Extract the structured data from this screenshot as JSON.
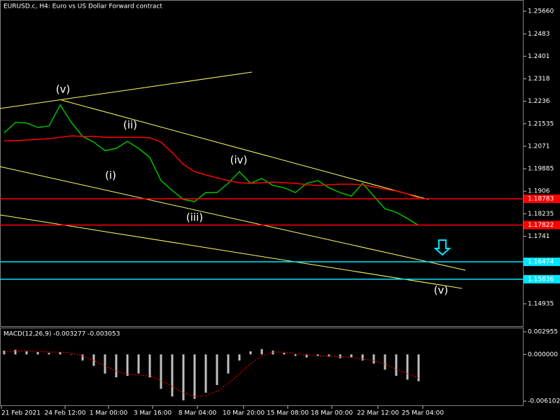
{
  "chart_data": [
    {
      "type": "line",
      "title": "EURUSD.c, H4:  Euro vs US Dollar Forward contract",
      "series": [
        {
          "color": "#00c000",
          "values": [
            1.212,
            1.2158,
            1.2156,
            1.214,
            1.2145,
            1.2222,
            1.2158,
            1.2107,
            1.2086,
            1.2055,
            1.2063,
            1.2089,
            1.2063,
            1.203,
            1.1945,
            1.1909,
            1.1876,
            1.1868,
            1.1901,
            1.1901,
            1.1935,
            1.1978,
            1.1935,
            1.1953,
            1.1927,
            1.1919,
            1.1901,
            1.1935,
            1.1945,
            1.1919,
            1.1901,
            1.1888,
            1.1935,
            1.1888,
            1.1842,
            1.1829,
            1.1806,
            1.1781
          ]
        },
        {
          "color": "#ff0000",
          "values": [
            1.2091,
            1.2091,
            1.2094,
            1.2096,
            1.2099,
            1.2104,
            1.2109,
            1.2107,
            1.2107,
            1.2104,
            1.2104,
            1.2104,
            1.2104,
            1.2102,
            1.2086,
            1.2048,
            1.2004,
            1.1978,
            1.1966,
            1.1955,
            1.1945,
            1.1937,
            1.1935,
            1.1937,
            1.194,
            1.1937,
            1.1935,
            1.193,
            1.1927,
            1.193,
            1.1932,
            1.1932,
            1.193,
            1.1922,
            1.1914,
            1.1907,
            1.1896,
            1.1881
          ]
        }
      ],
      "ylim": [
        1.14088,
        1.26071
      ],
      "yticks": [
        {
          "value": 1.2566,
          "label": "1.25660"
        },
        1.2483,
        1.2401,
        1.2318,
        1.2236,
        1.21535,
        1.2071,
        1.19885,
        1.1906,
        1.18235,
        1.1741,
        1.14935
      ],
      "levels": [
        {
          "value": 1.18783,
          "color": "#ff0000"
        },
        {
          "value": 1.17822,
          "color": "#ff0000"
        },
        {
          "value": 1.16474,
          "color": "#00e5ff"
        },
        {
          "value": 1.15836,
          "color": "#00e5ff"
        }
      ],
      "annotations": [
        "(v)",
        "(ii)",
        "(i)",
        "(iii)",
        "(iv)",
        "(v)"
      ],
      "x_labels": [
        "21 Feb 2021",
        "24 Feb 12:00",
        "1 Mar 00:00",
        "3 Mar 16:00",
        "8 Mar 04:00",
        "10 Mar 20:00",
        "15 Mar 08:00",
        "18 Mar 00:00",
        "22 Mar 12:00",
        "25 Mar 04:00"
      ]
    },
    {
      "type": "macd",
      "title": "MACD(12,26,9) -0.003277 -0.003053",
      "series": [
        {
          "color": "#c0c0c0",
          "values": [
            0.0005,
            0.0006,
            0.0004,
            0.0003,
            0.0002,
            0.0003,
            0.0,
            -0.0008,
            -0.0015,
            -0.0025,
            -0.003,
            -0.0028,
            -0.0025,
            -0.003,
            -0.0045,
            -0.0055,
            -0.006,
            -0.0058,
            -0.005,
            -0.004,
            -0.0025,
            -0.0008,
            0.0004,
            0.0007,
            0.0005,
            0.0002,
            -0.0002,
            -0.0004,
            -0.0002,
            -0.0003,
            -0.0005,
            -0.0004,
            -0.0008,
            -0.0012,
            -0.002,
            -0.0028,
            -0.0033,
            -0.0035
          ]
        },
        {
          "color": "#ff0000",
          "values": [
            0.0003,
            0.0004,
            0.0005,
            0.0004,
            0.0003,
            0.0003,
            0.0002,
            -0.0002,
            -0.0008,
            -0.0015,
            -0.0022,
            -0.0026,
            -0.0027,
            -0.0028,
            -0.0034,
            -0.0042,
            -0.005,
            -0.0055,
            -0.0054,
            -0.0048,
            -0.0038,
            -0.0025,
            -0.0012,
            -0.0002,
            0.0003,
            0.0003,
            0.0001,
            -0.0001,
            -0.0002,
            -0.0002,
            -0.0003,
            -0.0004,
            -0.0006,
            -0.0008,
            -0.0013,
            -0.0019,
            -0.0025,
            -0.0031
          ]
        }
      ],
      "ylim": [
        -0.00674,
        0.00341
      ],
      "yticks": [
        {
          "value": 0.002955,
          "label": "0.002955"
        },
        {
          "value": 0,
          "label": "0.000000"
        },
        {
          "value": -0.006102,
          "label": "-0.006102"
        }
      ]
    }
  ]
}
